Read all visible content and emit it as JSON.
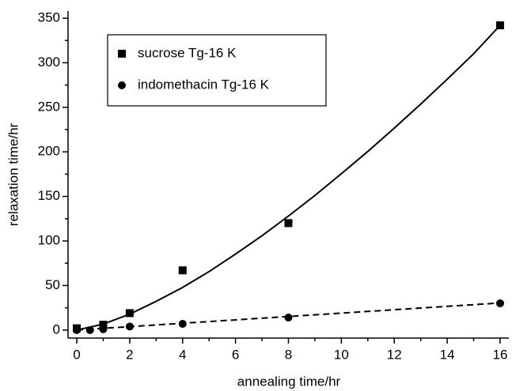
{
  "chart_data": {
    "type": "scatter",
    "x_label": "annealing time/hr",
    "y_label": "relaxation time/hr",
    "xlim": [
      -0.33,
      16.33
    ],
    "ylim": [
      -9,
      358
    ],
    "xticks": [
      0,
      2,
      4,
      6,
      8,
      10,
      12,
      14,
      16
    ],
    "yticks": [
      0,
      50,
      100,
      150,
      200,
      250,
      300,
      350
    ],
    "xminorticks": [
      1,
      3,
      5,
      7,
      9,
      11,
      13,
      15
    ],
    "yminorticks": [
      25,
      75,
      125,
      175,
      225,
      275,
      325
    ],
    "legend_position": "upper left",
    "series": [
      {
        "name": "sucrose Tg-16 K",
        "marker": "square",
        "color": "#000000",
        "x": [
          0,
          1,
          2,
          4,
          8,
          16
        ],
        "values": [
          2,
          6,
          19,
          67,
          120,
          342
        ]
      },
      {
        "name": "indomethacin Tg-16 K",
        "marker": "circle",
        "color": "#000000",
        "x": [
          0,
          0.5,
          1,
          2,
          4,
          8,
          16
        ],
        "values": [
          0,
          0,
          1,
          4,
          7,
          14,
          30
        ]
      }
    ],
    "fit_lines": [
      {
        "style": "solid",
        "x": [
          0,
          1,
          2,
          3,
          4,
          5,
          6,
          7,
          8,
          9,
          10,
          11,
          12,
          13,
          14,
          15,
          16
        ],
        "values": [
          0,
          6.7,
          17.9,
          32.2,
          47.8,
          65.6,
          85.2,
          105.9,
          128,
          151,
          175.5,
          200.5,
          226.6,
          253.7,
          281.5,
          310,
          342
        ]
      },
      {
        "style": "dashed",
        "x": [
          0,
          16.3
        ],
        "values": [
          0,
          31
        ]
      }
    ]
  }
}
